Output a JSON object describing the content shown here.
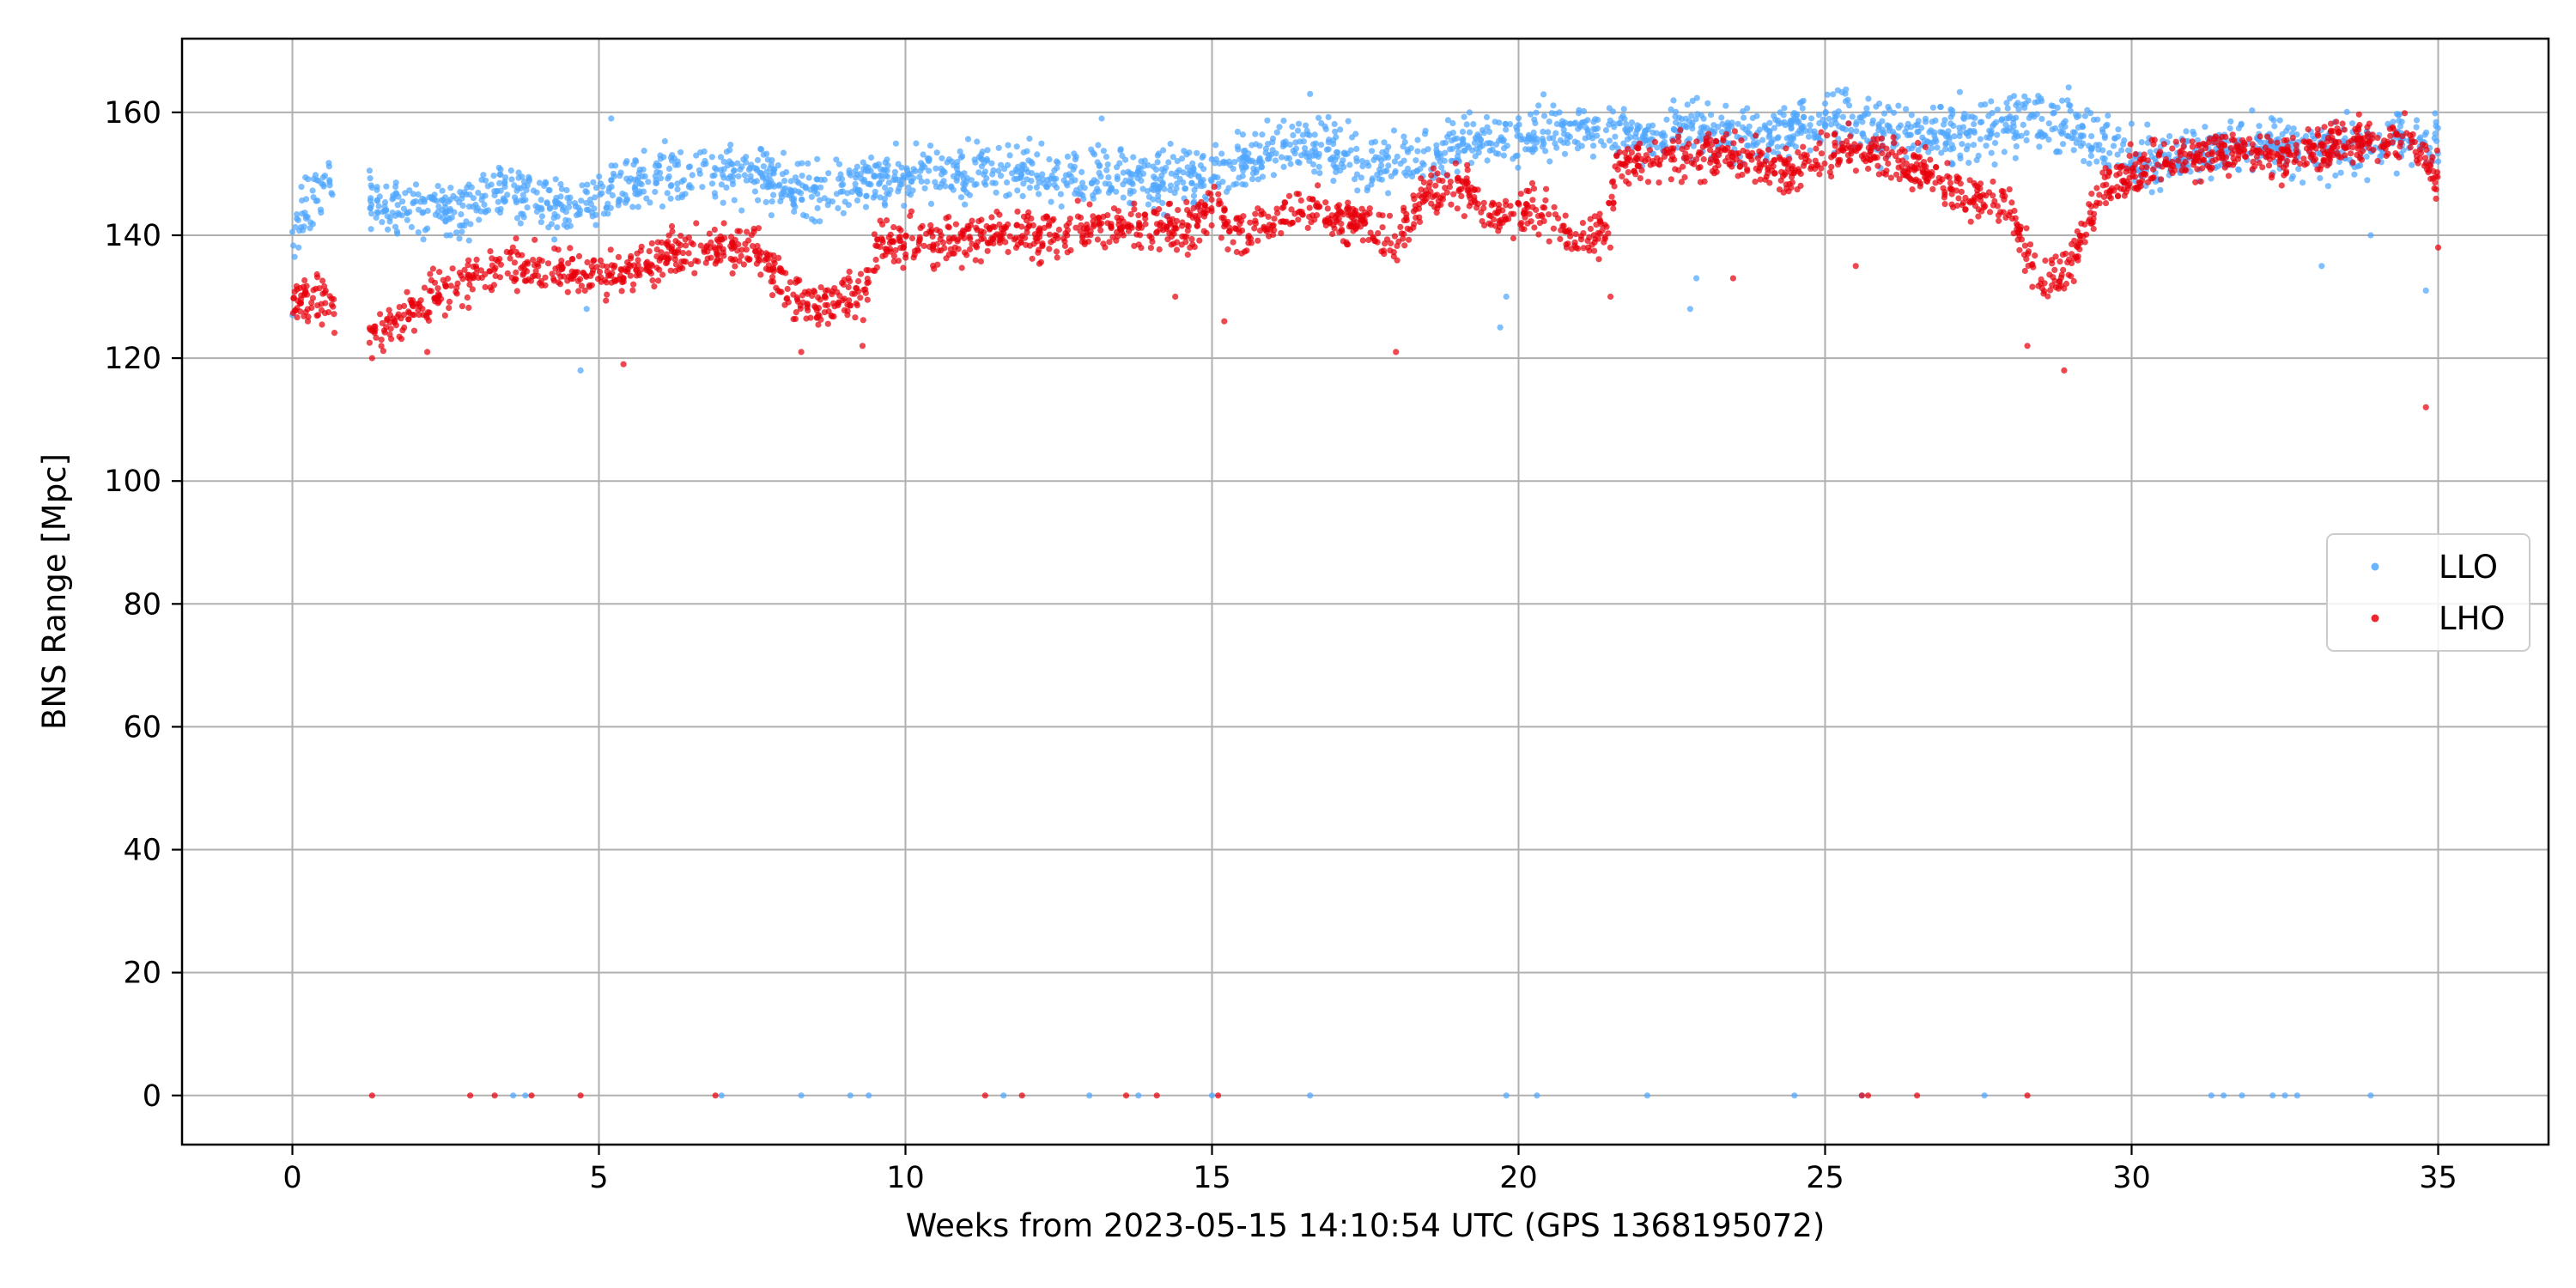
{
  "chart_data": {
    "type": "scatter",
    "xlabel": "Weeks from 2023-05-15 14:10:54 UTC (GPS 1368195072)",
    "ylabel": "BNS Range [Mpc]",
    "xlim": [
      -1.8,
      36.8
    ],
    "ylim": [
      -8,
      172
    ],
    "xticks": [
      0,
      5,
      10,
      15,
      20,
      25,
      30,
      35
    ],
    "yticks": [
      0,
      20,
      40,
      60,
      80,
      100,
      120,
      140,
      160
    ],
    "grid": true,
    "legend_position": "center-right",
    "series": [
      {
        "name": "LLO",
        "color": "#4fa6ff",
        "trend": [
          [
            0,
            139
          ],
          [
            0.3,
            146
          ],
          [
            0.6,
            149
          ],
          [
            1.3,
            145
          ],
          [
            2.5,
            144
          ],
          [
            3.5,
            147
          ],
          [
            4.6,
            144
          ],
          [
            5.5,
            149
          ],
          [
            6.5,
            150
          ],
          [
            7.5,
            150
          ],
          [
            8.5,
            147
          ],
          [
            9.5,
            149
          ],
          [
            10.5,
            150
          ],
          [
            11.5,
            151
          ],
          [
            12.5,
            149
          ],
          [
            13.5,
            150
          ],
          [
            14.5,
            149
          ],
          [
            15.5,
            152
          ],
          [
            16.5,
            155
          ],
          [
            17.5,
            152
          ],
          [
            18.5,
            153
          ],
          [
            19.5,
            155
          ],
          [
            20.5,
            157
          ],
          [
            21.2,
            158
          ],
          [
            22,
            156
          ],
          [
            23,
            157
          ],
          [
            24,
            156
          ],
          [
            25,
            159
          ],
          [
            26,
            157
          ],
          [
            27,
            157
          ],
          [
            28,
            158
          ],
          [
            29,
            158
          ],
          [
            30,
            152
          ],
          [
            31,
            153
          ],
          [
            32,
            155
          ],
          [
            33,
            154
          ],
          [
            34,
            155
          ],
          [
            35,
            156
          ]
        ],
        "outliers": [
          [
            0,
            127
          ],
          [
            0.1,
            138
          ],
          [
            4.7,
            118
          ],
          [
            4.8,
            128
          ],
          [
            5.2,
            159
          ],
          [
            6.0,
            153
          ],
          [
            13.2,
            159
          ],
          [
            16.6,
            163
          ],
          [
            19.2,
            160
          ],
          [
            19.7,
            125
          ],
          [
            19.8,
            130
          ],
          [
            22.8,
            128
          ],
          [
            22.9,
            133
          ],
          [
            33.1,
            135
          ],
          [
            33.9,
            140
          ],
          [
            34.8,
            131
          ],
          [
            35.0,
            152
          ]
        ],
        "zero_x": [
          3.6,
          3.8,
          7.0,
          8.3,
          9.1,
          9.4,
          11.6,
          13.0,
          13.8,
          15.0,
          16.6,
          19.8,
          20.3,
          22.1,
          24.5,
          25.6,
          27.6,
          31.3,
          31.5,
          31.8,
          32.3,
          32.5,
          32.7,
          33.9
        ]
      },
      {
        "name": "LHO",
        "color": "#e8000b",
        "trend": [
          [
            0,
            129
          ],
          [
            0.3,
            130
          ],
          [
            0.6,
            129
          ],
          [
            1.3,
            124
          ],
          [
            1.8,
            127
          ],
          [
            2.5,
            132
          ],
          [
            3.5,
            135
          ],
          [
            4.5,
            134
          ],
          [
            5.3,
            134
          ],
          [
            5.9,
            136
          ],
          [
            6.5,
            138
          ],
          [
            7.5,
            138
          ],
          [
            8.2,
            130
          ],
          [
            8.5,
            128
          ],
          [
            9.3,
            130
          ],
          [
            9.6,
            139
          ],
          [
            10.5,
            139
          ],
          [
            11.5,
            140
          ],
          [
            12.5,
            140
          ],
          [
            13.5,
            142
          ],
          [
            14.5,
            140
          ],
          [
            15.0,
            145
          ],
          [
            15.5,
            140
          ],
          [
            16.5,
            144
          ],
          [
            17.5,
            142
          ],
          [
            18.0,
            138
          ],
          [
            18.5,
            147
          ],
          [
            19.0,
            148
          ],
          [
            19.6,
            143
          ],
          [
            20.5,
            144
          ],
          [
            21.0,
            138
          ],
          [
            21.5,
            142
          ],
          [
            21.6,
            151
          ],
          [
            22.5,
            153
          ],
          [
            23.5,
            153
          ],
          [
            24.5,
            150
          ],
          [
            25.0,
            153
          ],
          [
            25.5,
            154
          ],
          [
            26.5,
            151
          ],
          [
            27.5,
            145
          ],
          [
            28.0,
            145
          ],
          [
            28.5,
            132
          ],
          [
            29.0,
            135
          ],
          [
            29.5,
            148
          ],
          [
            30.5,
            152
          ],
          [
            31.5,
            154
          ],
          [
            32.5,
            152
          ],
          [
            33.5,
            155
          ],
          [
            34.5,
            156
          ],
          [
            35.0,
            150
          ]
        ],
        "outliers": [
          [
            1.3,
            120
          ],
          [
            2.2,
            121
          ],
          [
            5.4,
            119
          ],
          [
            8.3,
            121
          ],
          [
            9.3,
            122
          ],
          [
            14.4,
            130
          ],
          [
            15.2,
            126
          ],
          [
            18.0,
            121
          ],
          [
            20.5,
            139
          ],
          [
            21.5,
            130
          ],
          [
            23.5,
            133
          ],
          [
            25.5,
            135
          ],
          [
            28.3,
            122
          ],
          [
            28.9,
            118
          ],
          [
            34.8,
            112
          ],
          [
            35.0,
            138
          ]
        ],
        "zero_x": [
          1.3,
          2.9,
          3.3,
          3.9,
          4.7,
          6.9,
          11.3,
          11.9,
          13.6,
          14.1,
          15.1,
          25.6,
          25.7,
          26.5,
          28.3
        ]
      }
    ]
  }
}
